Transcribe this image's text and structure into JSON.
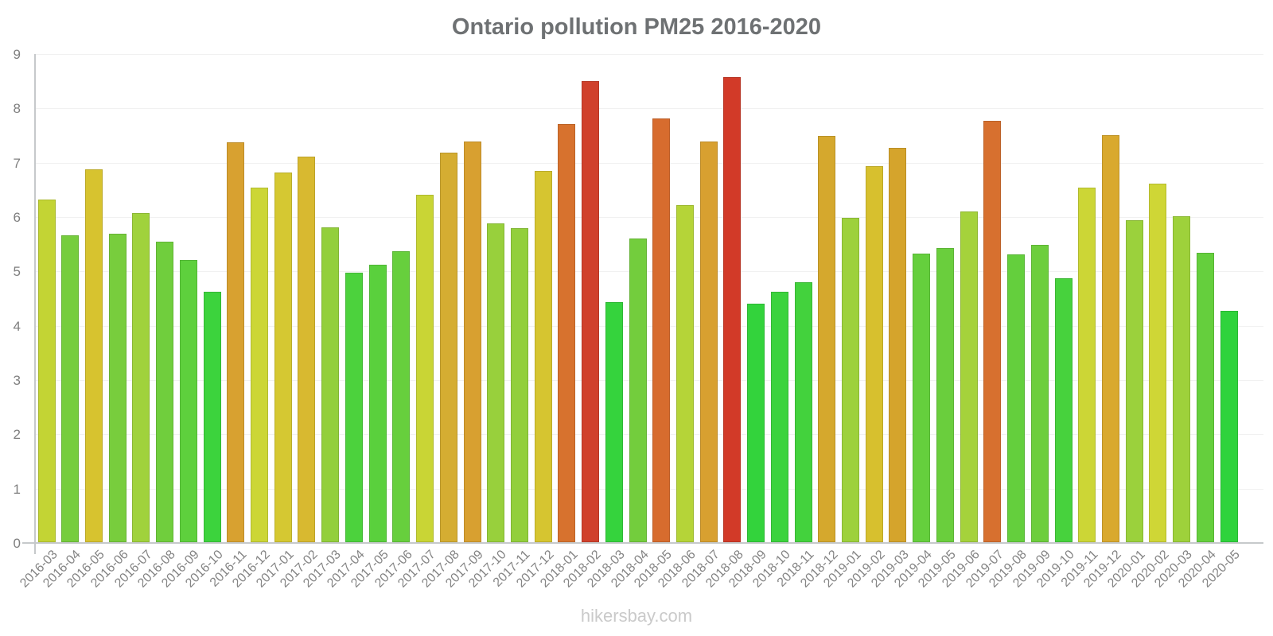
{
  "title": "Ontario pollution PM25 2016-2020",
  "footer": "hikersbay.com",
  "colors": {
    "background": "#ffffff",
    "title_text": "#6e7173",
    "ytick_text": "#7f7f7f",
    "xlabel_text": "#848484",
    "axis_line": "#c6c9cb",
    "gridline": "#f1f1f1",
    "footer_text": "#cacaca"
  },
  "chart_data": {
    "type": "bar",
    "title": "Ontario pollution PM25 2016-2020",
    "xlabel": "",
    "ylabel": "",
    "ylim": [
      0,
      9
    ],
    "yticks": [
      0,
      1,
      2,
      3,
      4,
      5,
      6,
      7,
      8,
      9
    ],
    "grid": true,
    "legend": false,
    "categories": [
      "2016-03",
      "2016-04",
      "2016-05",
      "2016-06",
      "2016-07",
      "2016-08",
      "2016-09",
      "2016-10",
      "2016-11",
      "2016-12",
      "2017-01",
      "2017-02",
      "2017-03",
      "2017-04",
      "2017-05",
      "2017-06",
      "2017-07",
      "2017-08",
      "2017-09",
      "2017-10",
      "2017-11",
      "2017-12",
      "2018-01",
      "2018-02",
      "2018-03",
      "2018-04",
      "2018-05",
      "2018-06",
      "2018-07",
      "2018-08",
      "2018-09",
      "2018-10",
      "2018-11",
      "2018-12",
      "2019-01",
      "2019-02",
      "2019-03",
      "2019-04",
      "2019-05",
      "2019-06",
      "2019-07",
      "2019-08",
      "2019-09",
      "2019-10",
      "2019-11",
      "2019-12",
      "2020-01",
      "2020-02",
      "2020-03",
      "2020-04",
      "2020-05"
    ],
    "values": [
      6.32,
      5.66,
      6.88,
      5.69,
      6.08,
      5.55,
      5.21,
      4.63,
      7.38,
      6.54,
      6.82,
      7.11,
      5.81,
      4.98,
      5.13,
      5.37,
      6.41,
      7.19,
      7.39,
      5.88,
      5.79,
      6.85,
      7.71,
      8.51,
      4.44,
      5.6,
      7.81,
      6.22,
      7.39,
      8.58,
      4.4,
      4.62,
      4.8,
      7.5,
      5.98,
      6.94,
      7.27,
      5.33,
      5.43,
      6.11,
      7.77,
      5.32,
      5.49,
      4.88,
      6.54,
      7.51,
      5.94,
      6.61,
      6.02,
      5.34,
      4.27
    ],
    "bar_colors": [
      "#c3d434",
      "#76cd3d",
      "#d7c32f",
      "#78cd3d",
      "#a0d23c",
      "#70ce3d",
      "#5ed03d",
      "#3cd33d",
      "#d8a130",
      "#ccd636",
      "#d5c832",
      "#d8b930",
      "#93cf3c",
      "#4cd23d",
      "#5ad03d",
      "#67cf3d",
      "#c9d535",
      "#d5ad32",
      "#d8a030",
      "#98d03c",
      "#92cf3c",
      "#d6c530",
      "#d7722e",
      "#d0412c",
      "#35d33d",
      "#73cd3d",
      "#d76c2e",
      "#b5d438",
      "#d8a030",
      "#d23a28",
      "#33d33c",
      "#3bd33d",
      "#43d23d",
      "#d5a82d",
      "#9dd13c",
      "#d7c02e",
      "#d5a42c",
      "#65cf3d",
      "#6ace3d",
      "#a5d23b",
      "#d7702f",
      "#64cf3d",
      "#6dce3d",
      "#47d23d",
      "#ccd636",
      "#d9a92e",
      "#9bd13c",
      "#cfd636",
      "#9ed13b",
      "#65cf3d",
      "#2fd33c"
    ]
  }
}
